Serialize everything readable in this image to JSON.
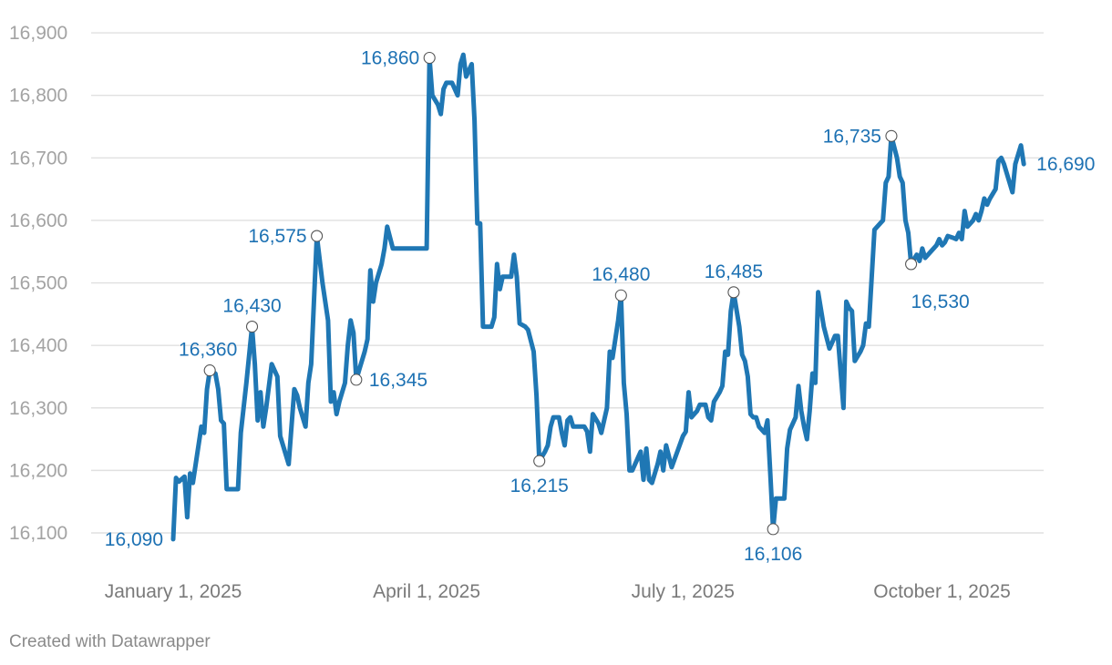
{
  "chart_data": {
    "type": "line",
    "title": "",
    "xlabel": "",
    "ylabel": "",
    "ylim": [
      16080,
      16900
    ],
    "yticks": [
      16100,
      16200,
      16300,
      16400,
      16500,
      16600,
      16700,
      16800,
      16900
    ],
    "ytick_labels": [
      "16,100",
      "16,200",
      "16,300",
      "16,400",
      "16,500",
      "16,600",
      "16,700",
      "16,800",
      "16,900"
    ],
    "xlim": [
      0,
      330
    ],
    "xticks": [
      {
        "x": 0,
        "label": "January 1, 2025"
      },
      {
        "x": 90,
        "label": "April 1, 2025"
      },
      {
        "x": 181,
        "label": "July 1, 2025"
      },
      {
        "x": 273,
        "label": "October 1, 2025"
      }
    ],
    "series": [
      {
        "name": "value",
        "color": "#1f77b4",
        "points": [
          [
            0,
            16090
          ],
          [
            1,
            16188
          ],
          [
            2,
            16182
          ],
          [
            4,
            16190
          ],
          [
            5,
            16125
          ],
          [
            6,
            16195
          ],
          [
            7,
            16180
          ],
          [
            8,
            16210
          ],
          [
            9,
            16240
          ],
          [
            10,
            16270
          ],
          [
            11,
            16260
          ],
          [
            12,
            16330
          ],
          [
            13,
            16360
          ],
          [
            15,
            16355
          ],
          [
            16,
            16330
          ],
          [
            17,
            16280
          ],
          [
            18,
            16275
          ],
          [
            19,
            16170
          ],
          [
            21,
            16170
          ],
          [
            23,
            16170
          ],
          [
            24,
            16260
          ],
          [
            26,
            16340
          ],
          [
            28,
            16430
          ],
          [
            29,
            16370
          ],
          [
            30,
            16280
          ],
          [
            31,
            16325
          ],
          [
            32,
            16270
          ],
          [
            33,
            16300
          ],
          [
            35,
            16370
          ],
          [
            37,
            16350
          ],
          [
            38,
            16255
          ],
          [
            39,
            16240
          ],
          [
            41,
            16210
          ],
          [
            43,
            16330
          ],
          [
            44,
            16320
          ],
          [
            45,
            16300
          ],
          [
            47,
            16270
          ],
          [
            48,
            16340
          ],
          [
            49,
            16370
          ],
          [
            51,
            16575
          ],
          [
            53,
            16500
          ],
          [
            55,
            16440
          ],
          [
            56,
            16310
          ],
          [
            57,
            16325
          ],
          [
            58,
            16290
          ],
          [
            59,
            16310
          ],
          [
            61,
            16340
          ],
          [
            62,
            16400
          ],
          [
            63,
            16440
          ],
          [
            64,
            16420
          ],
          [
            65,
            16345
          ],
          [
            66,
            16360
          ],
          [
            68,
            16390
          ],
          [
            69,
            16410
          ],
          [
            70,
            16520
          ],
          [
            71,
            16470
          ],
          [
            72,
            16500
          ],
          [
            74,
            16530
          ],
          [
            75,
            16555
          ],
          [
            76,
            16590
          ],
          [
            78,
            16555
          ],
          [
            80,
            16555
          ],
          [
            83,
            16555
          ],
          [
            86,
            16555
          ],
          [
            89,
            16555
          ],
          [
            90,
            16555
          ],
          [
            91,
            16860
          ],
          [
            92,
            16800
          ],
          [
            94,
            16785
          ],
          [
            95,
            16770
          ],
          [
            96,
            16810
          ],
          [
            97,
            16820
          ],
          [
            99,
            16820
          ],
          [
            101,
            16800
          ],
          [
            102,
            16850
          ],
          [
            103,
            16865
          ],
          [
            104,
            16830
          ],
          [
            106,
            16850
          ],
          [
            107,
            16760
          ],
          [
            108,
            16595
          ],
          [
            109,
            16595
          ],
          [
            110,
            16430
          ],
          [
            112,
            16430
          ],
          [
            113,
            16430
          ],
          [
            114,
            16445
          ],
          [
            115,
            16530
          ],
          [
            116,
            16490
          ],
          [
            117,
            16510
          ],
          [
            119,
            16510
          ],
          [
            120,
            16510
          ],
          [
            121,
            16545
          ],
          [
            122,
            16510
          ],
          [
            123,
            16435
          ],
          [
            125,
            16430
          ],
          [
            126,
            16425
          ],
          [
            128,
            16390
          ],
          [
            129,
            16320
          ],
          [
            130,
            16215
          ],
          [
            132,
            16230
          ],
          [
            133,
            16240
          ],
          [
            134,
            16270
          ],
          [
            135,
            16285
          ],
          [
            137,
            16285
          ],
          [
            138,
            16260
          ],
          [
            139,
            16240
          ],
          [
            140,
            16280
          ],
          [
            141,
            16285
          ],
          [
            142,
            16270
          ],
          [
            144,
            16270
          ],
          [
            146,
            16270
          ],
          [
            147,
            16262
          ],
          [
            148,
            16230
          ],
          [
            149,
            16290
          ],
          [
            151,
            16275
          ],
          [
            152,
            16260
          ],
          [
            154,
            16300
          ],
          [
            155,
            16390
          ],
          [
            156,
            16380
          ],
          [
            158,
            16440
          ],
          [
            159,
            16480
          ],
          [
            160,
            16340
          ],
          [
            161,
            16290
          ],
          [
            162,
            16200
          ],
          [
            163,
            16200
          ],
          [
            165,
            16220
          ],
          [
            166,
            16230
          ],
          [
            167,
            16185
          ],
          [
            168,
            16235
          ],
          [
            169,
            16185
          ],
          [
            170,
            16180
          ],
          [
            172,
            16210
          ],
          [
            173,
            16230
          ],
          [
            174,
            16200
          ],
          [
            175,
            16240
          ],
          [
            177,
            16205
          ],
          [
            179,
            16230
          ],
          [
            181,
            16255
          ],
          [
            182,
            16262
          ],
          [
            183,
            16325
          ],
          [
            184,
            16285
          ],
          [
            186,
            16295
          ],
          [
            187,
            16305
          ],
          [
            189,
            16305
          ],
          [
            190,
            16285
          ],
          [
            191,
            16280
          ],
          [
            192,
            16310
          ],
          [
            194,
            16325
          ],
          [
            195,
            16335
          ],
          [
            196,
            16390
          ],
          [
            197,
            16385
          ],
          [
            198,
            16455
          ],
          [
            199,
            16485
          ],
          [
            201,
            16430
          ],
          [
            202,
            16385
          ],
          [
            203,
            16375
          ],
          [
            204,
            16350
          ],
          [
            205,
            16290
          ],
          [
            206,
            16285
          ],
          [
            207,
            16285
          ],
          [
            208,
            16270
          ],
          [
            210,
            16260
          ],
          [
            211,
            16280
          ],
          [
            212,
            16195
          ],
          [
            213,
            16106
          ],
          [
            214,
            16155
          ],
          [
            215,
            16155
          ],
          [
            217,
            16155
          ],
          [
            218,
            16235
          ],
          [
            219,
            16265
          ],
          [
            221,
            16285
          ],
          [
            222,
            16335
          ],
          [
            223,
            16295
          ],
          [
            224,
            16270
          ],
          [
            225,
            16250
          ],
          [
            226,
            16295
          ],
          [
            227,
            16355
          ],
          [
            228,
            16340
          ],
          [
            229,
            16485
          ],
          [
            231,
            16430
          ],
          [
            233,
            16395
          ],
          [
            234,
            16405
          ],
          [
            235,
            16415
          ],
          [
            236,
            16415
          ],
          [
            238,
            16300
          ],
          [
            239,
            16470
          ],
          [
            240,
            16460
          ],
          [
            241,
            16455
          ],
          [
            242,
            16375
          ],
          [
            244,
            16390
          ],
          [
            245,
            16400
          ],
          [
            246,
            16435
          ],
          [
            247,
            16430
          ],
          [
            249,
            16585
          ],
          [
            251,
            16595
          ],
          [
            252,
            16600
          ],
          [
            253,
            16660
          ],
          [
            254,
            16670
          ],
          [
            255,
            16735
          ],
          [
            257,
            16700
          ],
          [
            258,
            16670
          ],
          [
            259,
            16660
          ],
          [
            260,
            16600
          ],
          [
            261,
            16580
          ],
          [
            262,
            16530
          ],
          [
            264,
            16545
          ],
          [
            265,
            16535
          ],
          [
            266,
            16555
          ],
          [
            267,
            16540
          ],
          [
            269,
            16550
          ],
          [
            271,
            16560
          ],
          [
            272,
            16570
          ],
          [
            273,
            16560
          ],
          [
            274,
            16565
          ],
          [
            275,
            16575
          ],
          [
            277,
            16572
          ],
          [
            278,
            16570
          ],
          [
            279,
            16580
          ],
          [
            280,
            16570
          ],
          [
            281,
            16615
          ],
          [
            282,
            16590
          ],
          [
            284,
            16600
          ],
          [
            285,
            16610
          ],
          [
            286,
            16600
          ],
          [
            287,
            16615
          ],
          [
            288,
            16635
          ],
          [
            289,
            16625
          ],
          [
            290,
            16635
          ],
          [
            292,
            16650
          ],
          [
            293,
            16695
          ],
          [
            294,
            16700
          ],
          [
            295,
            16690
          ],
          [
            297,
            16660
          ],
          [
            298,
            16645
          ],
          [
            299,
            16690
          ],
          [
            301,
            16720
          ],
          [
            302,
            16690
          ]
        ]
      }
    ],
    "annotations": [
      {
        "x": 0,
        "y": 16090,
        "label": "16,090",
        "pos": "left",
        "marker": false
      },
      {
        "x": 13,
        "y": 16360,
        "label": "16,360",
        "pos": "above-left",
        "marker": true
      },
      {
        "x": 28,
        "y": 16430,
        "label": "16,430",
        "pos": "above",
        "marker": true
      },
      {
        "x": 51,
        "y": 16575,
        "label": "16,575",
        "pos": "left",
        "marker": true
      },
      {
        "x": 65,
        "y": 16345,
        "label": "16,345",
        "pos": "right",
        "marker": true
      },
      {
        "x": 91,
        "y": 16860,
        "label": "16,860",
        "pos": "left",
        "marker": true
      },
      {
        "x": 130,
        "y": 16215,
        "label": "16,215",
        "pos": "below",
        "marker": true
      },
      {
        "x": 159,
        "y": 16480,
        "label": "16,480",
        "pos": "above",
        "marker": true
      },
      {
        "x": 199,
        "y": 16485,
        "label": "16,485",
        "pos": "above",
        "marker": true
      },
      {
        "x": 213,
        "y": 16106,
        "label": "16,106",
        "pos": "below",
        "marker": true
      },
      {
        "x": 255,
        "y": 16735,
        "label": "16,735",
        "pos": "left",
        "marker": true
      },
      {
        "x": 262,
        "y": 16530,
        "label": "16,530",
        "pos": "below-right",
        "marker": true
      },
      {
        "x": 302,
        "y": 16690,
        "label": "16,690",
        "pos": "right",
        "marker": false
      }
    ],
    "grid": true,
    "legend": "none"
  },
  "footer": {
    "credit": "Created with Datawrapper"
  }
}
